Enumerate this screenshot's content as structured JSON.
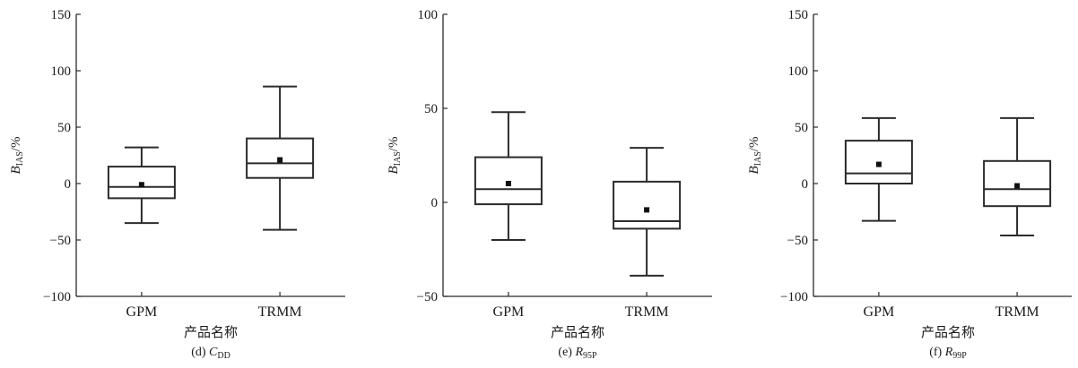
{
  "chart_data": [
    {
      "type": "box",
      "caption_prefix": "(d) ",
      "caption_var": "C",
      "caption_sub": "DD",
      "xlabel": "产品名称",
      "ylabel_main": "B",
      "ylabel_sub": "IAS",
      "ylabel_suffix": "/%",
      "ylim": [
        -100,
        150
      ],
      "yticks": [
        150,
        100,
        50,
        0,
        -50,
        -100
      ],
      "ytick_labels": [
        "150",
        "100",
        "50",
        "0",
        "−50",
        "−100"
      ],
      "categories": [
        "GPM",
        "TRMM"
      ],
      "boxes": [
        {
          "category": "GPM",
          "whisker_low": -35,
          "q1": -13,
          "median": -3,
          "q3": 15,
          "whisker_high": 32,
          "mean": -1
        },
        {
          "category": "TRMM",
          "whisker_low": -41,
          "q1": 5,
          "median": 18,
          "q3": 40,
          "whisker_high": 86,
          "mean": 21
        }
      ]
    },
    {
      "type": "box",
      "caption_prefix": "(e) ",
      "caption_var": "R",
      "caption_sub": "95P",
      "xlabel": "产品名称",
      "ylabel_main": "B",
      "ylabel_sub": "IAS",
      "ylabel_suffix": "/%",
      "ylim": [
        -50,
        100
      ],
      "yticks": [
        100,
        50,
        0,
        -50
      ],
      "ytick_labels": [
        "100",
        "50",
        "0",
        "−50"
      ],
      "categories": [
        "GPM",
        "TRMM"
      ],
      "boxes": [
        {
          "category": "GPM",
          "whisker_low": -20,
          "q1": -1,
          "median": 7,
          "q3": 24,
          "whisker_high": 48,
          "mean": 10
        },
        {
          "category": "TRMM",
          "whisker_low": -39,
          "q1": -14,
          "median": -10,
          "q3": 11,
          "whisker_high": 29,
          "mean": -4
        }
      ]
    },
    {
      "type": "box",
      "caption_prefix": "(f) ",
      "caption_var": "R",
      "caption_sub": "99P",
      "xlabel": "产品名称",
      "ylabel_main": "B",
      "ylabel_sub": "IAS",
      "ylabel_suffix": "/%",
      "ylim": [
        -100,
        150
      ],
      "yticks": [
        150,
        100,
        50,
        0,
        -50,
        -100
      ],
      "ytick_labels": [
        "150",
        "100",
        "50",
        "0",
        "−50",
        "−100"
      ],
      "categories": [
        "GPM",
        "TRMM"
      ],
      "boxes": [
        {
          "category": "GPM",
          "whisker_low": -33,
          "q1": 0,
          "median": 9,
          "q3": 38,
          "whisker_high": 58,
          "mean": 17
        },
        {
          "category": "TRMM",
          "whisker_low": -46,
          "q1": -20,
          "median": -5,
          "q3": 20,
          "whisker_high": 58,
          "mean": -2
        }
      ]
    }
  ]
}
